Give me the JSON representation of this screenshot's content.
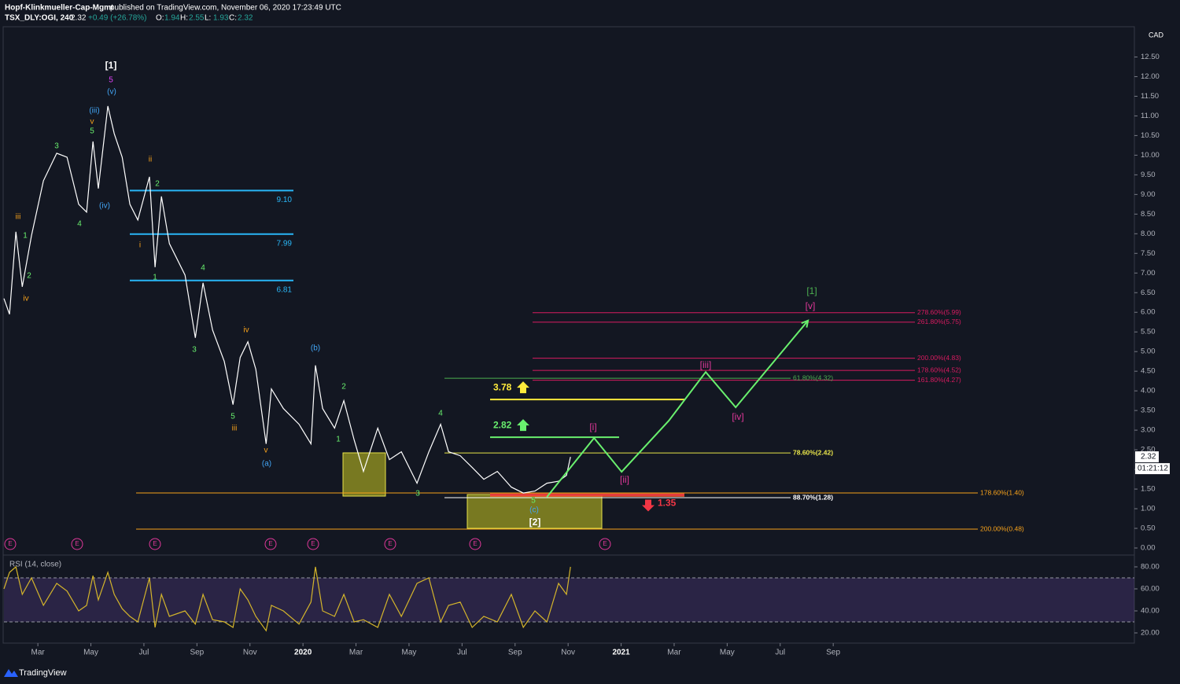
{
  "header": {
    "publisher": "Hopf-Klinkmueller-Cap-Mgmt",
    "published": "published on TradingView.com, November 06, 2020 17:23:49 UTC",
    "symbol": "TSX_DLY:OGI, 240",
    "last": "2.32",
    "change": "+0.49 (+26.78%)",
    "ohlc": [
      {
        "key": "O:",
        "value": "1.94"
      },
      {
        "key": "H:",
        "value": "2.55"
      },
      {
        "key": "L:",
        "value": "1.93"
      },
      {
        "key": "C:",
        "value": "2.32"
      }
    ]
  },
  "chart_data": [
    {
      "type": "line",
      "currency": "CAD",
      "color": "#ffffff",
      "x": [
        0.72,
        0.93,
        1.17,
        1.41,
        1.76,
        2.21,
        2.71,
        3.1,
        3.54,
        3.84,
        4.08,
        4.28,
        4.64,
        4.88,
        5.18,
        5.47,
        5.77,
        6.21,
        6.42,
        6.66,
        6.96,
        7.55,
        7.94,
        8.23,
        8.59,
        9.03,
        9.36,
        9.63,
        9.92,
        10.22,
        10.61,
        10.81,
        11.26,
        11.85,
        12.3,
        12.47,
        12.74,
        13.19,
        13.54,
        13.93,
        14.28,
        14.82,
        15.26,
        15.71,
        16.3,
        16.75,
        17.19,
        17.49,
        17.93,
        18.38,
        18.82,
        19.33,
        19.86,
        20.31,
        20.75,
        21.2,
        21.64,
        21.94,
        22.09
      ],
      "values": [
        6.35,
        5.95,
        8.05,
        6.65,
        7.95,
        9.35,
        10.05,
        9.95,
        8.75,
        8.55,
        10.35,
        9.15,
        11.25,
        10.55,
        9.95,
        8.75,
        8.35,
        9.45,
        7.15,
        8.95,
        7.75,
        6.95,
        5.35,
        6.75,
        5.55,
        4.75,
        3.65,
        4.85,
        5.25,
        4.55,
        2.65,
        4.05,
        3.55,
        3.15,
        2.65,
        4.65,
        3.55,
        3.05,
        3.75,
        2.75,
        1.95,
        3.05,
        2.25,
        2.45,
        1.65,
        2.45,
        3.15,
        2.45,
        2.35,
        2.05,
        1.75,
        1.95,
        1.55,
        1.4,
        1.45,
        1.65,
        1.7,
        1.85,
        2.32
      ],
      "xlim": [
        0.72,
        43.3
      ],
      "ylim": [
        -0.18,
        13.25
      ],
      "xticks": [
        {
          "value": 2,
          "label": "Mar"
        },
        {
          "value": 4,
          "label": "May"
        },
        {
          "value": 6,
          "label": "Jul"
        },
        {
          "value": 8,
          "label": "Sep"
        },
        {
          "value": 10,
          "label": "Nov"
        },
        {
          "value": 12,
          "label": "2020"
        },
        {
          "value": 14,
          "label": "Mar"
        },
        {
          "value": 16,
          "label": "May"
        },
        {
          "value": 18,
          "label": "Jul"
        },
        {
          "value": 20,
          "label": "Sep"
        },
        {
          "value": 22,
          "label": "Nov"
        },
        {
          "value": 24,
          "label": "2021"
        },
        {
          "value": 26,
          "label": "Mar"
        },
        {
          "value": 28,
          "label": "May"
        },
        {
          "value": 30,
          "label": "Jul"
        },
        {
          "value": 32,
          "label": "Sep"
        }
      ],
      "yticks": [
        {
          "value": 0,
          "label": "0.00"
        },
        {
          "value": 0.5,
          "label": "0.50"
        },
        {
          "value": 1,
          "label": "1.00"
        },
        {
          "value": 1.5,
          "label": "1.50"
        },
        {
          "value": 2,
          "label": "2.00"
        },
        {
          "value": 2.5,
          "label": "2.50"
        },
        {
          "value": 3,
          "label": "3.00"
        },
        {
          "value": 3.5,
          "label": "3.50"
        },
        {
          "value": 4,
          "label": "4.00"
        },
        {
          "value": 4.5,
          "label": "4.50"
        },
        {
          "value": 5,
          "label": "5.00"
        },
        {
          "value": 5.5,
          "label": "5.50"
        },
        {
          "value": 6,
          "label": "6.00"
        },
        {
          "value": 6.5,
          "label": "6.50"
        },
        {
          "value": 7,
          "label": "7.00"
        },
        {
          "value": 7.5,
          "label": "7.50"
        },
        {
          "value": 8,
          "label": "8.00"
        },
        {
          "value": 8.5,
          "label": "8.50"
        },
        {
          "value": 9,
          "label": "9.00"
        },
        {
          "value": 9.5,
          "label": "9.50"
        },
        {
          "value": 10,
          "label": "10.00"
        },
        {
          "value": 10.5,
          "label": "10.50"
        },
        {
          "value": 11,
          "label": "11.00"
        },
        {
          "value": 11.5,
          "label": "11.50"
        },
        {
          "value": 12,
          "label": "12.00"
        },
        {
          "value": 12.5,
          "label": "12.50"
        }
      ],
      "projection": {
        "color": "#69f06e",
        "x": [
          21.2,
          22.98,
          24.02,
          25.8,
          27.19,
          28.32,
          31.05
        ],
        "values": [
          1.3,
          2.8,
          1.94,
          3.24,
          4.48,
          3.58,
          5.79
        ]
      },
      "levels": [
        {
          "value": 9.1,
          "label": "9.10",
          "color": "#29b6f6"
        },
        {
          "value": 7.99,
          "label": "7.99",
          "color": "#29b6f6"
        },
        {
          "value": 6.81,
          "label": "6.81",
          "color": "#29b6f6"
        },
        {
          "value": 5.99,
          "label": "278.60%(5.99)",
          "color": "#d81b60"
        },
        {
          "value": 5.75,
          "label": "261.80%(5.75)",
          "color": "#d81b60"
        },
        {
          "value": 4.83,
          "label": "200.00%(4.83)",
          "color": "#d81b60"
        },
        {
          "value": 4.52,
          "label": "178.60%(4.52)",
          "color": "#d81b60"
        },
        {
          "value": 4.27,
          "label": "161.80%(4.27)",
          "color": "#d81b60"
        },
        {
          "value": 4.32,
          "label": "61.80%(4.32)",
          "color": "#4caf50"
        },
        {
          "value": 2.42,
          "label": "78.60%(2.42)",
          "color": "#e8e44a"
        },
        {
          "value": 1.28,
          "label": "88.70%(1.28)",
          "color": "#ffffff"
        },
        {
          "value": 1.4,
          "label": "178.60%(1.40)",
          "color": "#f7a21b"
        },
        {
          "value": 0.48,
          "label": "200.00%(0.48)",
          "color": "#f7a21b"
        }
      ],
      "targets": [
        {
          "value": 3.78,
          "color": "#ffeb3b"
        },
        {
          "value": 2.82,
          "color": "#69f06e"
        },
        {
          "value": 1.35,
          "color": "#f23645"
        }
      ],
      "waves": [
        {
          "text": "[1]",
          "color": "#ffffff"
        },
        {
          "text": "5",
          "color": "#e040fb"
        },
        {
          "text": "(v)",
          "color": "#42a5f5"
        },
        {
          "text": "(iii)",
          "color": "#42a5f5"
        },
        {
          "text": "v",
          "color": "#f7a21b"
        },
        {
          "text": "5",
          "color": "#69f06e"
        },
        {
          "text": "3",
          "color": "#69f06e"
        },
        {
          "text": "ii",
          "color": "#f7a21b"
        },
        {
          "text": "2",
          "color": "#69f06e"
        },
        {
          "text": "(iv)",
          "color": "#42a5f5"
        },
        {
          "text": "4",
          "color": "#69f06e"
        },
        {
          "text": "iii",
          "color": "#f7a21b"
        },
        {
          "text": "1",
          "color": "#69f06e"
        },
        {
          "text": "2",
          "color": "#69f06e"
        },
        {
          "text": "iv",
          "color": "#f7a21b"
        },
        {
          "text": "i",
          "color": "#f7a21b"
        },
        {
          "text": "1",
          "color": "#69f06e"
        },
        {
          "text": "4",
          "color": "#69f06e"
        },
        {
          "text": "3",
          "color": "#69f06e"
        },
        {
          "text": "iv",
          "color": "#f7a21b"
        },
        {
          "text": "5",
          "color": "#69f06e"
        },
        {
          "text": "iii",
          "color": "#f7a21b"
        },
        {
          "text": "v",
          "color": "#f7a21b"
        },
        {
          "text": "(a)",
          "color": "#42a5f5"
        },
        {
          "text": "(b)",
          "color": "#42a5f5"
        },
        {
          "text": "2",
          "color": "#69f06e"
        },
        {
          "text": "1",
          "color": "#69f06e"
        },
        {
          "text": "4",
          "color": "#69f06e"
        },
        {
          "text": "3",
          "color": "#69f06e"
        },
        {
          "text": "5",
          "color": "#69f06e"
        },
        {
          "text": "(c)",
          "color": "#42a5f5"
        },
        {
          "text": "[2]",
          "color": "#ffffff"
        },
        {
          "text": "[i]",
          "color": "#e0389a"
        },
        {
          "text": "[ii]",
          "color": "#e0389a"
        },
        {
          "text": "[iii]",
          "color": "#e0389a"
        },
        {
          "text": "[iv]",
          "color": "#e0389a"
        },
        {
          "text": "[v]",
          "color": "#e0389a"
        },
        {
          "text": "[1]",
          "color": "#4caf50"
        }
      ],
      "earnings": [
        "E",
        "E",
        "E",
        "E",
        "E",
        "E",
        "E",
        "E"
      ],
      "price_tag": 2.32,
      "countdown": "01:21:12"
    },
    {
      "type": "line",
      "title": "RSI (14, close)",
      "color": "#d4b52b",
      "x": [
        0.72,
        0.93,
        1.17,
        1.41,
        1.76,
        2.21,
        2.71,
        3.1,
        3.54,
        3.84,
        4.08,
        4.28,
        4.64,
        4.88,
        5.18,
        5.47,
        5.77,
        6.21,
        6.42,
        6.66,
        6.96,
        7.55,
        7.94,
        8.23,
        8.59,
        9.03,
        9.36,
        9.63,
        9.92,
        10.22,
        10.61,
        10.81,
        11.26,
        11.85,
        12.3,
        12.47,
        12.74,
        13.19,
        13.54,
        13.93,
        14.28,
        14.82,
        15.26,
        15.71,
        16.3,
        16.75,
        17.19,
        17.49,
        17.93,
        18.38,
        18.82,
        19.33,
        19.86,
        20.31,
        20.75,
        21.2,
        21.64,
        21.94,
        22.09
      ],
      "values": [
        60,
        75,
        80,
        55,
        70,
        45,
        65,
        58,
        40,
        45,
        72,
        50,
        75,
        55,
        42,
        35,
        30,
        70,
        25,
        55,
        35,
        40,
        28,
        55,
        32,
        30,
        25,
        60,
        50,
        35,
        22,
        45,
        40,
        28,
        48,
        80,
        40,
        35,
        55,
        30,
        32,
        25,
        55,
        35,
        65,
        70,
        30,
        45,
        48,
        25,
        35,
        30,
        55,
        25,
        40,
        30,
        65,
        55,
        80
      ],
      "xlim": [
        0.72,
        43.3
      ],
      "ylim": [
        10,
        90
      ],
      "bands": [
        30,
        70
      ],
      "yticks": [
        {
          "value": 20,
          "label": "20.00"
        },
        {
          "value": 40,
          "label": "40.00"
        },
        {
          "value": 60,
          "label": "60.00"
        },
        {
          "value": 80,
          "label": "80.00"
        }
      ]
    }
  ],
  "footer": {
    "brand": "TradingView"
  }
}
